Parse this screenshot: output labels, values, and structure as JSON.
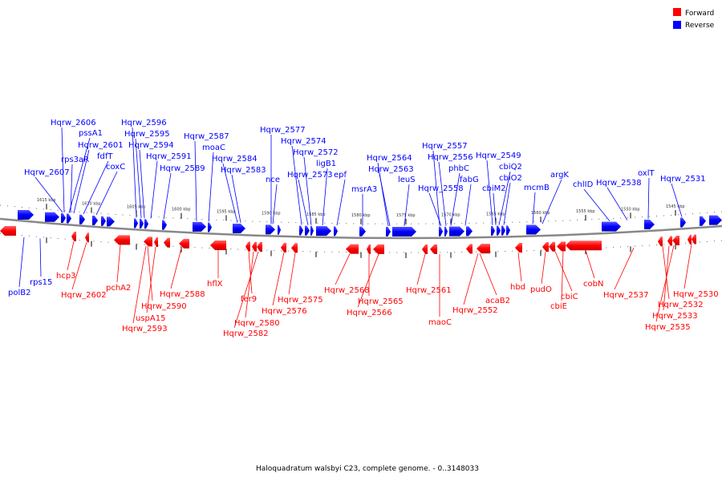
{
  "colors": {
    "forward": "#ff0000",
    "reverse": "#0000ff",
    "backbone": "#888888"
  },
  "legend": [
    {
      "label": "Forward",
      "color": "#ff0000"
    },
    {
      "label": "Reverse",
      "color": "#0000ff"
    }
  ],
  "caption": "Haloquadratum walsbyi C23, complete genome. - 0..3148033",
  "ticks": [
    {
      "label": "1615 kbp",
      "kbp": 1615
    },
    {
      "label": "1610 kbp",
      "kbp": 1610
    },
    {
      "label": "1605 kbp",
      "kbp": 1605
    },
    {
      "label": "1600 kbp",
      "kbp": 1600
    },
    {
      "label": "1595 kbp",
      "kbp": 1595
    },
    {
      "label": "1590 kbp",
      "kbp": 1590
    },
    {
      "label": "1585 kbp",
      "kbp": 1585
    },
    {
      "label": "1580 kbp",
      "kbp": 1580
    },
    {
      "label": "1575 kbp",
      "kbp": 1575
    },
    {
      "label": "1570 kbp",
      "kbp": 1570
    },
    {
      "label": "1565 kbp",
      "kbp": 1565
    },
    {
      "label": "1560 kbp",
      "kbp": 1560
    },
    {
      "label": "1555 kbp",
      "kbp": 1555
    },
    {
      "label": "1550 kbp",
      "kbp": 1550
    },
    {
      "label": "1545 kbp",
      "kbp": 1545
    }
  ],
  "reverse_labels": [
    "Hqrw_2606",
    "pssA1",
    "Hqrw_2601",
    "rps3aR",
    "fdfT",
    "coxC",
    "Hqrw_2607",
    "Hqrw_2596",
    "Hqrw_2595",
    "Hqrw_2594",
    "Hqrw_2591",
    "Hqrw_2589",
    "Hqrw_2587",
    "moaC",
    "Hqrw_2584",
    "Hqrw_2583",
    "Hqrw_2577",
    "Hqrw_2574",
    "Hqrw_2572",
    "nce",
    "ligB1",
    "Hqrw_2573",
    "epf",
    "msrA3",
    "Hqrw_2564",
    "Hqrw_2563",
    "leuS",
    "Hqrw_2557",
    "Hqrw_2556",
    "phbC",
    "Hqrw_2558",
    "fabG",
    "Hqrw_2549",
    "cbiQ2",
    "cbiO2",
    "cbiM2",
    "mcmB",
    "argK",
    "chlID",
    "Hqrw_2538",
    "oxlT",
    "Hqrw_2531",
    "polB2",
    "rps15"
  ],
  "forward_labels": [
    "hcp3",
    "Hqrw_2602",
    "pchA2",
    "Hqrw_2590",
    "uspA15",
    "Hqrw_2593",
    "Hqrw_2588",
    "hflX",
    "fer9",
    "Hqrw_2580",
    "Hqrw_2582",
    "Hqrw_2576",
    "Hqrw_2575",
    "Hqrw_2568",
    "Hqrw_2565",
    "Hqrw_2566",
    "Hqrw_2561",
    "maoC",
    "Hqrw_2552",
    "acaB2",
    "hbd",
    "pudO",
    "cbiC",
    "cbiE",
    "cobN",
    "Hqrw_2537",
    "Hqrw_2530",
    "Hqrw_2532",
    "Hqrw_2533",
    "Hqrw_2535"
  ]
}
